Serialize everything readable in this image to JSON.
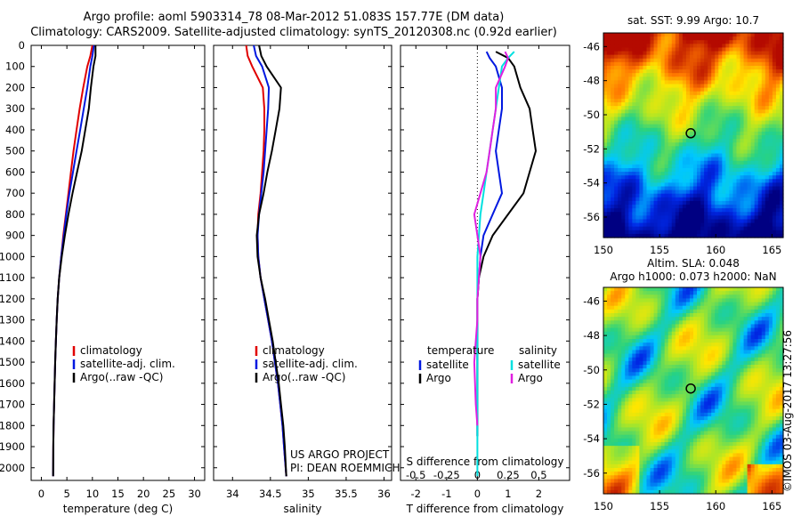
{
  "header": {
    "title_line1": "Argo profile: aoml 5903314_78 08-Mar-2012 51.083S 157.77E (DM data)",
    "title_line2": "Climatology: CARS2009. Satellite-adjusted climatology: synTS_20120308.nc (0.92d earlier)"
  },
  "colors": {
    "climatology": "#e00000",
    "satellite": "#0018e0",
    "argo": "#000000",
    "satellite_salinity": "#00e0e0",
    "argo_salinity": "#e020e0"
  },
  "chart_data": [
    {
      "type": "line",
      "panel": "temperature",
      "xlabel": "temperature (deg C)",
      "xlim": [
        -2,
        32
      ],
      "xticks": [
        0,
        5,
        10,
        15,
        20,
        25,
        30
      ],
      "ylim": [
        2060,
        0
      ],
      "yticks": [
        0,
        100,
        200,
        300,
        400,
        500,
        600,
        700,
        800,
        900,
        1000,
        1100,
        1200,
        1300,
        1400,
        1500,
        1600,
        1700,
        1800,
        1900,
        2000
      ],
      "legend": [
        "climatology",
        "satellite-adj. clim.",
        "Argo(..raw -QC)"
      ],
      "series": [
        {
          "name": "climatology",
          "color": "#e00000",
          "x": [
            10.0,
            9.6,
            9.0,
            8.2,
            7.5,
            6.9,
            6.3,
            5.8,
            5.3,
            4.8,
            4.3,
            3.9,
            3.5,
            3.2,
            3.0,
            2.85,
            2.7,
            2.6,
            2.5,
            2.4,
            2.35,
            2.3
          ],
          "y": [
            0,
            50,
            100,
            200,
            300,
            400,
            500,
            600,
            700,
            800,
            900,
            1000,
            1100,
            1200,
            1300,
            1400,
            1500,
            1600,
            1700,
            1800,
            1900,
            2040
          ]
        },
        {
          "name": "satellite-adj. clim.",
          "color": "#0018e0",
          "x": [
            10.3,
            10.0,
            9.6,
            9.0,
            8.3,
            7.6,
            6.9,
            6.2,
            5.5,
            4.9,
            4.4,
            3.9,
            3.5,
            3.2,
            3.0,
            2.85,
            2.7,
            2.6,
            2.5,
            2.4,
            2.35,
            2.3
          ],
          "y": [
            0,
            50,
            100,
            200,
            300,
            400,
            500,
            600,
            700,
            800,
            900,
            1000,
            1100,
            1200,
            1300,
            1400,
            1500,
            1600,
            1700,
            1800,
            1900,
            2040
          ]
        },
        {
          "name": "Argo(..raw -QC)",
          "color": "#000000",
          "x": [
            10.6,
            10.6,
            10.2,
            9.7,
            9.3,
            8.6,
            7.9,
            7.0,
            6.1,
            5.3,
            4.6,
            4.0,
            3.5,
            3.2,
            3.0,
            2.85,
            2.7,
            2.6,
            2.5,
            2.4,
            2.35,
            2.3
          ],
          "y": [
            0,
            50,
            100,
            200,
            300,
            400,
            500,
            600,
            700,
            800,
            900,
            1000,
            1100,
            1200,
            1300,
            1400,
            1500,
            1600,
            1700,
            1800,
            1900,
            2040
          ]
        }
      ]
    },
    {
      "type": "line",
      "panel": "salinity",
      "xlabel": "salinity",
      "xlim": [
        33.75,
        36.1
      ],
      "xticks": [
        34,
        34.5,
        35,
        35.5,
        36
      ],
      "ylim": [
        2060,
        0
      ],
      "legend": [
        "climatology",
        "satellite-adj. clim.",
        "Argo(..raw -QC)"
      ],
      "series": [
        {
          "name": "climatology",
          "color": "#e00000",
          "x": [
            34.18,
            34.2,
            34.26,
            34.4,
            34.42,
            34.42,
            34.41,
            34.39,
            34.37,
            34.34,
            34.33,
            34.34,
            34.37,
            34.42,
            34.47,
            34.52,
            34.56,
            34.6,
            34.63,
            34.66,
            34.68,
            34.71
          ],
          "y": [
            0,
            50,
            100,
            200,
            300,
            400,
            500,
            600,
            700,
            800,
            900,
            1000,
            1100,
            1200,
            1300,
            1400,
            1500,
            1600,
            1700,
            1800,
            1900,
            2040
          ]
        },
        {
          "name": "satellite-adj. clim.",
          "color": "#0018e0",
          "x": [
            34.28,
            34.31,
            34.39,
            34.48,
            34.47,
            34.45,
            34.43,
            34.41,
            34.38,
            34.35,
            34.33,
            34.34,
            34.37,
            34.42,
            34.47,
            34.52,
            34.56,
            34.6,
            34.63,
            34.66,
            34.68,
            34.71
          ],
          "y": [
            0,
            50,
            100,
            200,
            300,
            400,
            500,
            600,
            700,
            800,
            900,
            1000,
            1100,
            1200,
            1300,
            1400,
            1500,
            1600,
            1700,
            1800,
            1900,
            2040
          ]
        },
        {
          "name": "Argo(..raw -QC)",
          "color": "#000000",
          "x": [
            34.35,
            34.38,
            34.45,
            34.64,
            34.62,
            34.57,
            34.52,
            34.46,
            34.41,
            34.35,
            34.32,
            34.33,
            34.37,
            34.43,
            34.48,
            34.53,
            34.57,
            34.61,
            34.64,
            34.67,
            34.69,
            34.71
          ],
          "y": [
            0,
            50,
            100,
            200,
            300,
            400,
            500,
            600,
            700,
            800,
            900,
            1000,
            1100,
            1200,
            1300,
            1400,
            1500,
            1600,
            1700,
            1800,
            1900,
            2040
          ]
        }
      ]
    },
    {
      "type": "line",
      "panel": "differences",
      "xlabel": "T difference from climatology",
      "xlabel_top": "S difference from climatology",
      "xlim": [
        -2.5,
        3.0
      ],
      "xticks": [
        -2,
        -1,
        0,
        1,
        2
      ],
      "xtick_labels": [
        "-2",
        "-1",
        "0",
        "1",
        "2"
      ],
      "xticks_top": [
        -2,
        -1,
        0,
        1,
        2
      ],
      "xtick_labels_top": [
        "-0.5",
        "-0.25",
        "0",
        "0.25",
        "0.5"
      ],
      "ylim": [
        2060,
        0
      ],
      "legend_left_title": "temperature",
      "legend_right_title": "salinity",
      "legend_left": [
        "satellite",
        "Argo"
      ],
      "legend_right": [
        "satellite",
        "Argo"
      ],
      "series": [
        {
          "name": "temperature satellite",
          "color": "#0018e0",
          "x": [
            0.3,
            0.4,
            0.6,
            0.8,
            0.8,
            0.7,
            0.6,
            0.7,
            0.8,
            0.5,
            0.2,
            0.1,
            0.05,
            0.0,
            0.0,
            0.0,
            0.0,
            0.0,
            0.0,
            0.0,
            0.0
          ],
          "y": [
            30,
            60,
            100,
            200,
            300,
            400,
            500,
            600,
            700,
            800,
            900,
            1000,
            1100,
            1200,
            1300,
            1400,
            1500,
            1600,
            1700,
            1800,
            1850
          ]
        },
        {
          "name": "temperature Argo",
          "color": "#000000",
          "x": [
            0.6,
            1.0,
            1.2,
            1.4,
            1.7,
            1.8,
            1.9,
            1.7,
            1.5,
            1.0,
            0.5,
            0.2,
            0.05,
            0.0,
            0.0,
            0.0,
            0.0,
            0.0,
            0.0,
            0.0,
            0.0
          ],
          "y": [
            30,
            60,
            100,
            200,
            300,
            400,
            500,
            600,
            700,
            800,
            900,
            1000,
            1100,
            1200,
            1300,
            1400,
            1500,
            1600,
            1700,
            1800,
            1850
          ]
        },
        {
          "name": "salinity satellite",
          "color": "#00e0e0",
          "x": [
            1.2,
            1.0,
            0.8,
            0.7,
            0.6,
            0.5,
            0.4,
            0.3,
            0.2,
            0.1,
            0.05,
            0.0,
            0.0,
            0.0,
            0.0,
            0.0,
            0.0,
            0.0,
            0.0,
            0.0
          ],
          "y": [
            30,
            60,
            100,
            200,
            300,
            400,
            500,
            600,
            700,
            800,
            900,
            1000,
            1100,
            1200,
            1300,
            1400,
            1500,
            1700,
            1900,
            2040
          ]
        },
        {
          "name": "salinity Argo",
          "color": "#e020e0",
          "x": [
            0.9,
            1.0,
            0.9,
            0.6,
            0.6,
            0.5,
            0.4,
            0.3,
            0.1,
            -0.1,
            0.0,
            0.1,
            0.05,
            0.0,
            0.0,
            -0.05,
            -0.1,
            -0.05,
            0.0
          ],
          "y": [
            30,
            60,
            100,
            200,
            300,
            400,
            500,
            600,
            700,
            800,
            900,
            1000,
            1100,
            1200,
            1300,
            1400,
            1500,
            1700,
            1800
          ]
        }
      ]
    },
    {
      "type": "heatmap",
      "panel": "sst_map",
      "title": "sat. SST: 9.99  Argo: 10.7",
      "xlim": [
        150,
        166
      ],
      "ylim": [
        -57.2,
        -45.2
      ],
      "xticks": [
        150,
        155,
        160,
        165
      ],
      "yticks": [
        -46,
        -48,
        -50,
        -52,
        -54,
        -56
      ],
      "marker": {
        "lon": 157.77,
        "lat": -51.083
      }
    },
    {
      "type": "heatmap",
      "panel": "sla_map",
      "title_line1": "Altim. SLA: 0.048",
      "title_line2": "Argo h1000: 0.073 h2000: NaN",
      "xlim": [
        150,
        166
      ],
      "ylim": [
        -57.2,
        -45.2
      ],
      "xticks": [
        150,
        155,
        160,
        165
      ],
      "yticks": [
        -46,
        -48,
        -50,
        -52,
        -54,
        -56
      ],
      "marker": {
        "lon": 157.77,
        "lat": -51.083
      }
    }
  ],
  "annotations": {
    "project_line1": "US ARGO PROJECT",
    "project_line2": "PI: DEAN ROEMMICH",
    "credit": "©IMOS 03-Aug-2017 13:27:56"
  }
}
